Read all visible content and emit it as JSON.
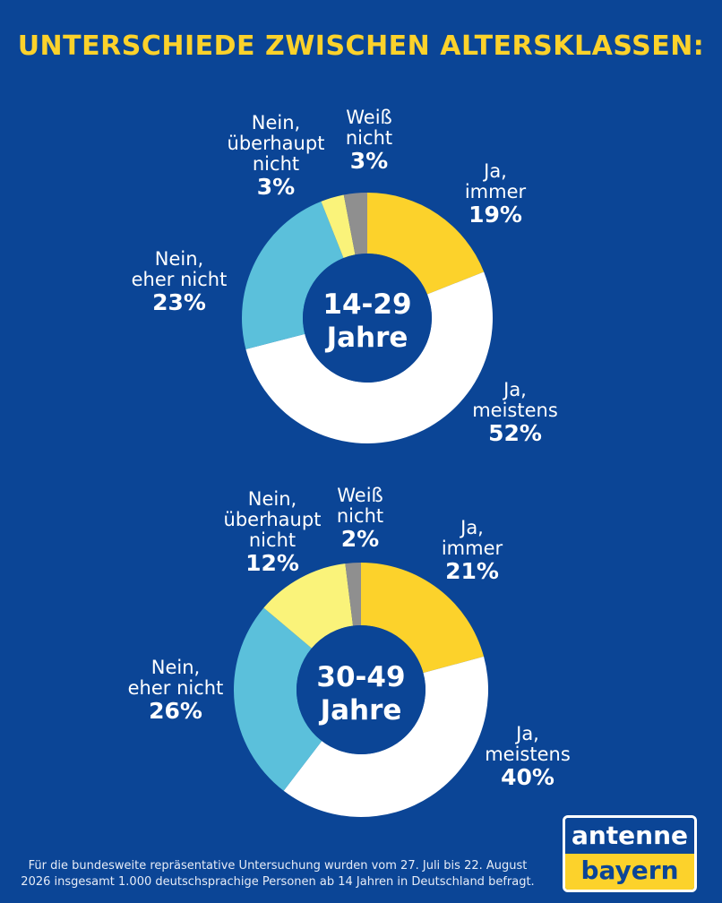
{
  "title": "UNTERSCHIEDE ZWISCHEN ALTERSKLASSEN:",
  "footnote": {
    "line1": "Für die bundesweite repräsentative Untersuchung wurden vom 27. Juli bis 22. August",
    "line2": "2026 insgesamt 1.000 deutschsprachige Personen ab 14 Jahren in Deutschland befragt."
  },
  "logo": {
    "top": "antenne",
    "bottom": "bayern"
  },
  "colors": {
    "background": "#0b4596",
    "title": "#fcd22b",
    "ja_immer": "#fcd22b",
    "ja_meistens": "#ffffff",
    "nein_eher_nicht": "#5bc0db",
    "nein_ueberhaupt_nicht": "#faf37a",
    "weiss_nicht": "#8f8f8f"
  },
  "chart_data": [
    {
      "type": "pie",
      "center_label": {
        "line1": "14-29",
        "line2": "Jahre"
      },
      "slices": [
        {
          "label": "Ja, immer",
          "label_line1": "Ja,",
          "label_line2": "immer",
          "value": 19,
          "value_label": "19%",
          "color": "#fcd22b"
        },
        {
          "label": "Ja, meistens",
          "label_line1": "Ja,",
          "label_line2": "meistens",
          "value": 52,
          "value_label": "52%",
          "color": "#ffffff"
        },
        {
          "label": "Nein, eher nicht",
          "label_line1": "Nein,",
          "label_line2": "eher nicht",
          "value": 23,
          "value_label": "23%",
          "color": "#5bc0db"
        },
        {
          "label": "Nein, überhaupt nicht",
          "label_line1": "Nein,",
          "label_line2": "überhaupt",
          "label_line3": "nicht",
          "value": 3,
          "value_label": "3%",
          "color": "#faf37a"
        },
        {
          "label": "Weiß nicht",
          "label_line1": "Weiß",
          "label_line2": "nicht",
          "value": 3,
          "value_label": "3%",
          "color": "#8f8f8f"
        }
      ]
    },
    {
      "type": "pie",
      "center_label": {
        "line1": "30-49",
        "line2": "Jahre"
      },
      "slices": [
        {
          "label": "Ja, immer",
          "label_line1": "Ja,",
          "label_line2": "immer",
          "value": 21,
          "value_label": "21%",
          "color": "#fcd22b"
        },
        {
          "label": "Ja, meistens",
          "label_line1": "Ja,",
          "label_line2": "meistens",
          "value": 40,
          "value_label": "40%",
          "color": "#ffffff"
        },
        {
          "label": "Nein, eher nicht",
          "label_line1": "Nein,",
          "label_line2": "eher nicht",
          "value": 26,
          "value_label": "26%",
          "color": "#5bc0db"
        },
        {
          "label": "Nein, überhaupt nicht",
          "label_line1": "Nein,",
          "label_line2": "überhaupt",
          "label_line3": "nicht",
          "value": 12,
          "value_label": "12%",
          "color": "#faf37a"
        },
        {
          "label": "Weiß nicht",
          "label_line1": "Weiß",
          "label_line2": "nicht",
          "value": 2,
          "value_label": "2%",
          "color": "#8f8f8f"
        }
      ]
    }
  ]
}
